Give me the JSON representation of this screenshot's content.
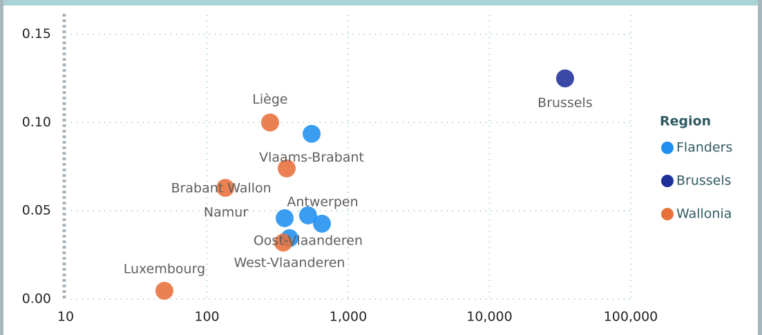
{
  "chart_data": {
    "type": "scatter",
    "legend_title": "Region",
    "legend_position": "right",
    "x_scale": "log",
    "grid": true,
    "xlim": [
      10,
      100000
    ],
    "ylim": [
      0,
      0.16
    ],
    "xticks": [
      10,
      100,
      {
        "value": 1000,
        "label": "1,000"
      },
      {
        "value": 10000,
        "label": "10,000"
      },
      {
        "value": 100000,
        "label": "100,000"
      }
    ],
    "yticks": [
      {
        "value": 0,
        "label": "0.00"
      },
      {
        "value": 0.05,
        "label": "0.05"
      },
      {
        "value": 0.1,
        "label": "0.10"
      },
      {
        "value": 0.15,
        "label": "0.15"
      }
    ],
    "series": [
      {
        "name": "Flanders",
        "color": "#1f8ff0",
        "x": [
          551,
          355,
          652,
          520,
          384
        ],
        "values": [
          0.0936,
          0.0458,
          0.0427,
          0.0474,
          0.0345
        ],
        "labels": [
          "Vlaams-Brabant",
          null,
          "Antwerpen",
          "Oost-Vlaanderen",
          "West-Vlaanderen"
        ]
      },
      {
        "name": "Brussels",
        "color": "#1f2f9a",
        "x": [
          34300
        ],
        "values": [
          0.125
        ],
        "labels": [
          "Brussels"
        ]
      },
      {
        "name": "Wallonia",
        "color": "#e8703a",
        "x": [
          280,
          367,
          135,
          347,
          50
        ],
        "values": [
          0.1,
          0.074,
          0.063,
          0.032,
          0.0047
        ],
        "labels": [
          "Liège",
          null,
          "Brabant Wallon",
          "Namur",
          "Luxembourg"
        ]
      }
    ]
  }
}
